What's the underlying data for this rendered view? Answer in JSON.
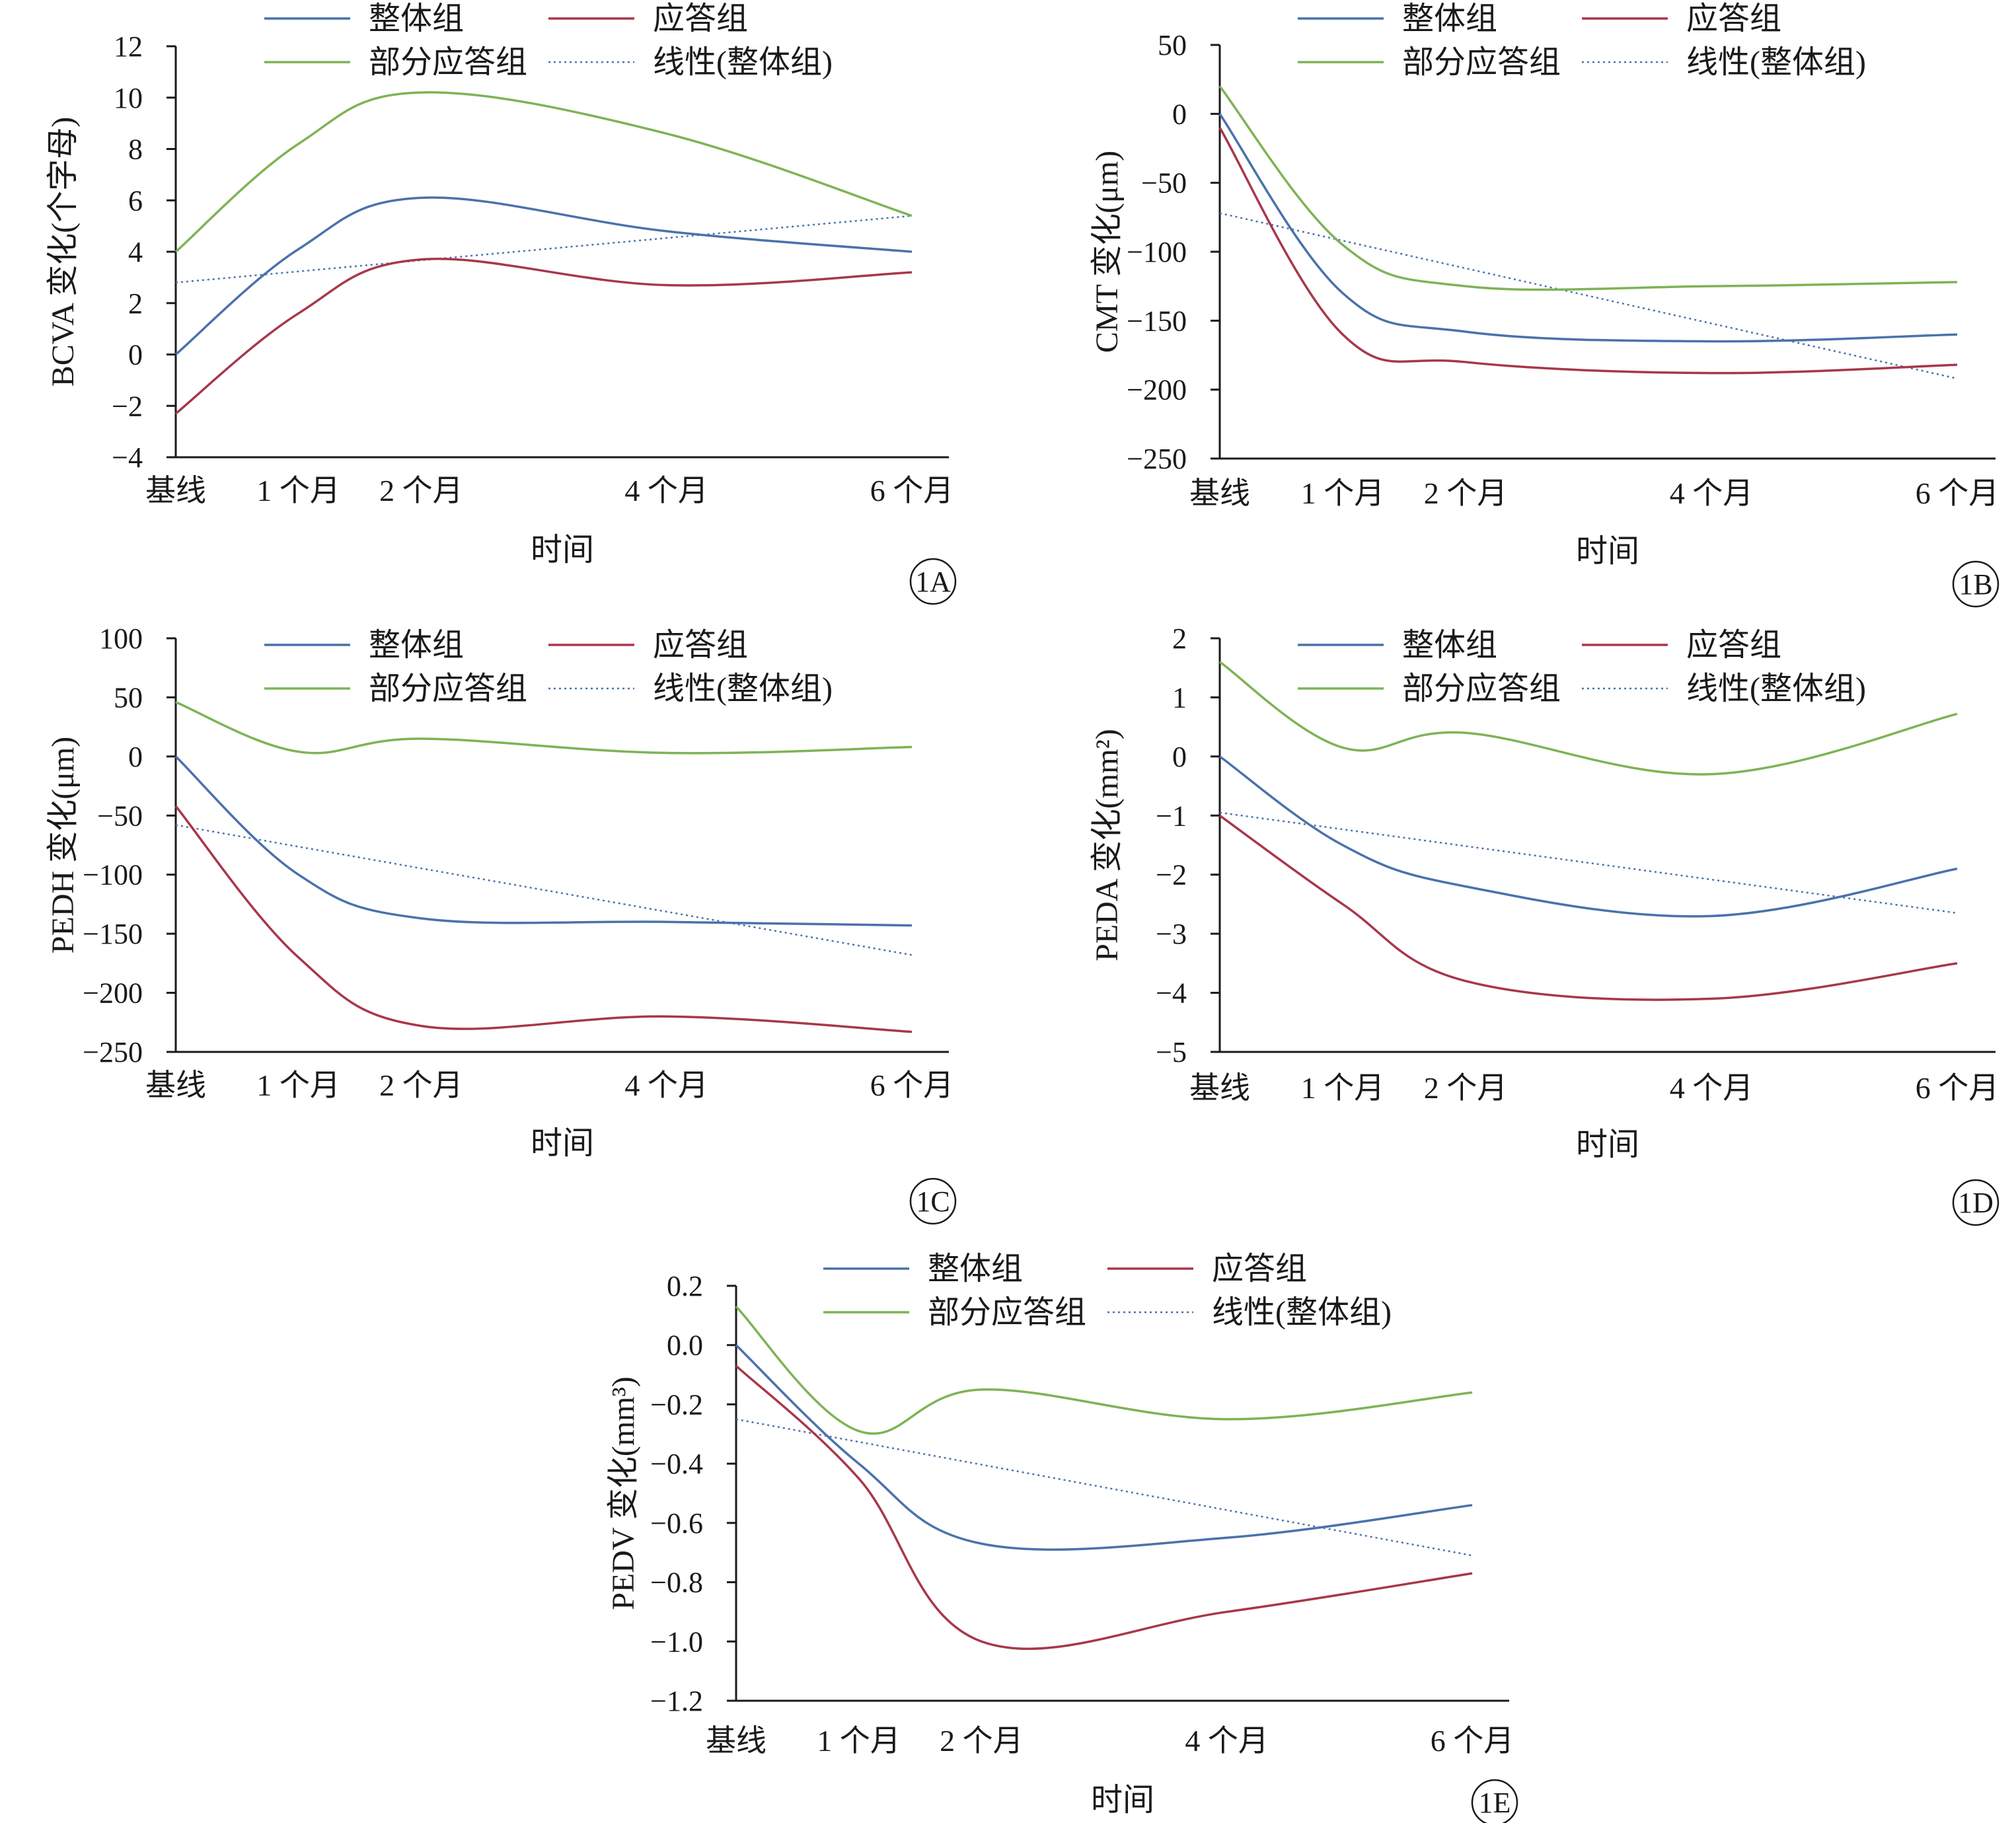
{
  "colors": {
    "overall": "#4a72ab",
    "responder": "#a8374b",
    "partial": "#7eb356",
    "trend": "#4a72ab",
    "axis": "#1a1a1a"
  },
  "legend_labels": {
    "overall": "整体组",
    "responder": "应答组",
    "partial": "部分应答组",
    "trend": "线性(整体组)"
  },
  "chart_data": [
    {
      "type": "line",
      "panel_label": "1A",
      "xlabel": "时间",
      "ylabel": "BCVA 变化(个字母)",
      "categories": [
        "基线",
        "1 个月",
        "2 个月",
        "4 个月",
        "6 个月"
      ],
      "x": [
        0,
        1,
        2,
        4,
        6
      ],
      "ylim": [
        -4,
        12
      ],
      "yticks": [
        -4,
        -2,
        0,
        2,
        4,
        6,
        8,
        10,
        12
      ],
      "ytick_labels": [
        "−4",
        "−2",
        "0",
        "2",
        "4",
        "6",
        "8",
        "10",
        "12"
      ],
      "series": [
        {
          "name": "整体组",
          "values": [
            0,
            4.1,
            6.1,
            4.8,
            4.0
          ]
        },
        {
          "name": "应答组",
          "values": [
            -2.3,
            1.6,
            3.7,
            2.7,
            3.2
          ]
        },
        {
          "name": "部分应答组",
          "values": [
            4.0,
            8.2,
            10.2,
            8.6,
            5.4
          ]
        }
      ],
      "trendline": {
        "name": "线性(整体组)",
        "values": [
          2.8,
          5.4
        ]
      },
      "legend_position": "top"
    },
    {
      "type": "line",
      "panel_label": "1B",
      "xlabel": "时间",
      "ylabel": "CMT 变化(μm)",
      "categories": [
        "基线",
        "1 个月",
        "2 个月",
        "4 个月",
        "6 个月"
      ],
      "x": [
        0,
        1,
        2,
        4,
        6
      ],
      "ylim": [
        -250,
        50
      ],
      "yticks": [
        -250,
        -200,
        -150,
        -100,
        -50,
        0,
        50
      ],
      "ytick_labels": [
        "−250",
        "−200",
        "−150",
        "−100",
        "−50",
        "0",
        "50"
      ],
      "series": [
        {
          "name": "整体组",
          "values": [
            0,
            -130,
            -158,
            -165,
            -160
          ]
        },
        {
          "name": "应答组",
          "values": [
            -10,
            -160,
            -180,
            -188,
            -182
          ]
        },
        {
          "name": "部分应答组",
          "values": [
            20,
            -95,
            -125,
            -125,
            -122
          ]
        }
      ],
      "trendline": {
        "name": "线性(整体组)",
        "values": [
          -72,
          -192
        ]
      },
      "legend_position": "top"
    },
    {
      "type": "line",
      "panel_label": "1C",
      "xlabel": "时间",
      "ylabel": "PEDH 变化(μm)",
      "categories": [
        "基线",
        "1 个月",
        "2 个月",
        "4 个月",
        "6 个月"
      ],
      "x": [
        0,
        1,
        2,
        4,
        6
      ],
      "ylim": [
        -250,
        100
      ],
      "yticks": [
        -250,
        -200,
        -150,
        -100,
        -50,
        0,
        50,
        100
      ],
      "ytick_labels": [
        "−250",
        "−200",
        "−150",
        "−100",
        "−50",
        "0",
        "50",
        "100"
      ],
      "series": [
        {
          "name": "整体组",
          "values": [
            0,
            -100,
            -137,
            -140,
            -143
          ]
        },
        {
          "name": "应答组",
          "values": [
            -42,
            -170,
            -228,
            -220,
            -233
          ]
        },
        {
          "name": "部分应答组",
          "values": [
            46,
            4,
            15,
            3,
            8
          ]
        }
      ],
      "trendline": {
        "name": "线性(整体组)",
        "values": [
          -58,
          -168
        ]
      },
      "legend_position": "top"
    },
    {
      "type": "line",
      "panel_label": "1D",
      "xlabel": "时间",
      "ylabel": "PEDA 变化(mm²)",
      "categories": [
        "基线",
        "1 个月",
        "2 个月",
        "4 个月",
        "6 个月"
      ],
      "x": [
        0,
        1,
        2,
        4,
        6
      ],
      "ylim": [
        -5,
        2
      ],
      "yticks": [
        -5,
        -4,
        -3,
        -2,
        -1,
        0,
        1,
        2
      ],
      "ytick_labels": [
        "−5",
        "−4",
        "−3",
        "−2",
        "−1",
        "0",
        "1",
        "2"
      ],
      "series": [
        {
          "name": "整体组",
          "values": [
            0,
            -1.5,
            -2.2,
            -2.7,
            -1.9
          ]
        },
        {
          "name": "应答组",
          "values": [
            -1.0,
            -2.5,
            -3.8,
            -4.1,
            -3.5
          ]
        },
        {
          "name": "部分应答组",
          "values": [
            1.6,
            0.15,
            0.4,
            -0.3,
            0.72
          ]
        }
      ],
      "trendline": {
        "name": "线性(整体组)",
        "values": [
          -0.95,
          -2.65
        ]
      },
      "legend_position": "top"
    },
    {
      "type": "line",
      "panel_label": "1E",
      "xlabel": "时间",
      "ylabel": "PEDV 变化(mm³)",
      "categories": [
        "基线",
        "1 个月",
        "2 个月",
        "4 个月",
        "6 个月"
      ],
      "x": [
        0,
        1,
        2,
        4,
        6
      ],
      "ylim": [
        -1.2,
        0.2
      ],
      "yticks": [
        -1.2,
        -1.0,
        -0.8,
        -0.6,
        -0.4,
        -0.2,
        0.0,
        0.2
      ],
      "ytick_labels": [
        "−1.2",
        "−1.0",
        "−0.8",
        "−0.6",
        "−0.4",
        "−0.2",
        "0.0",
        "0.2"
      ],
      "series": [
        {
          "name": "整体组",
          "values": [
            0.0,
            -0.4,
            -0.67,
            -0.65,
            -0.54
          ]
        },
        {
          "name": "应答组",
          "values": [
            -0.07,
            -0.45,
            -1.0,
            -0.9,
            -0.77
          ]
        },
        {
          "name": "部分应答组",
          "values": [
            0.13,
            -0.29,
            -0.15,
            -0.25,
            -0.16
          ]
        }
      ],
      "trendline": {
        "name": "线性(整体组)",
        "values": [
          -0.25,
          -0.71
        ]
      },
      "legend_position": "top"
    }
  ]
}
